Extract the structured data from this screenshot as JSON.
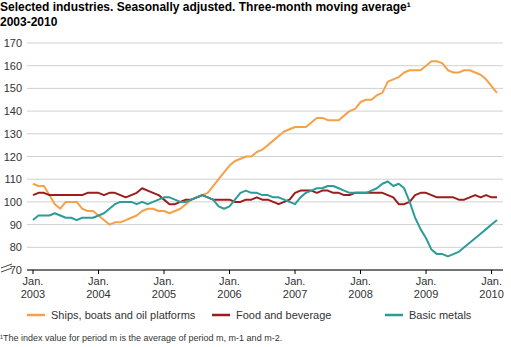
{
  "chart_data": {
    "type": "line",
    "title": "Selected industries. Seasonally adjusted. Three-month moving average¹",
    "subtitle": "2003-2010",
    "annotations": [
      "¹The index value for period m is the average of period m, m-1 and m-2."
    ],
    "categories": [
      "Jan. 2003",
      null,
      null,
      null,
      null,
      null,
      null,
      null,
      null,
      null,
      null,
      null,
      "Jan. 2004",
      null,
      null,
      null,
      null,
      null,
      null,
      null,
      null,
      null,
      null,
      null,
      "Jan. 2005",
      null,
      null,
      null,
      null,
      null,
      null,
      null,
      null,
      null,
      null,
      null,
      "Jan. 2006",
      null,
      null,
      null,
      null,
      null,
      null,
      null,
      null,
      null,
      null,
      null,
      "Jan. 2007",
      null,
      null,
      null,
      null,
      null,
      null,
      null,
      null,
      null,
      null,
      null,
      "Jan. 2008",
      null,
      null,
      null,
      null,
      null,
      null,
      null,
      null,
      null,
      null,
      null,
      "Jan. 2009",
      null,
      null,
      null,
      null,
      null,
      null,
      null,
      null,
      null,
      null,
      null,
      "Jan. 2010",
      null
    ],
    "series": [
      {
        "name": "Ships, boats and oil platforms",
        "color": "#f4a14a",
        "values": [
          108,
          107,
          107,
          103,
          99,
          97,
          100,
          100,
          100,
          97,
          96,
          96,
          94,
          92,
          90,
          91,
          91,
          92,
          93,
          94,
          96,
          97,
          97,
          96,
          96,
          95,
          96,
          97,
          99,
          101,
          102,
          103,
          104,
          107,
          110,
          113,
          116,
          118,
          119,
          120,
          120,
          122,
          123,
          125,
          127,
          129,
          131,
          132,
          133,
          133,
          133,
          135,
          137,
          137,
          136,
          136,
          136,
          138,
          140,
          141,
          144,
          145,
          145,
          147,
          148,
          153,
          154,
          155,
          157,
          158,
          158,
          158,
          160,
          162,
          162,
          161,
          158,
          157,
          157,
          158,
          158,
          157,
          156,
          154,
          151,
          148
        ]
      },
      {
        "name": "Food and beverage",
        "color": "#9c1c1c",
        "values": [
          103,
          104,
          104,
          103,
          103,
          103,
          103,
          103,
          103,
          103,
          104,
          104,
          104,
          103,
          104,
          104,
          103,
          102,
          103,
          104,
          106,
          105,
          104,
          103,
          101,
          99,
          99,
          100,
          101,
          101,
          102,
          103,
          102,
          101,
          101,
          101,
          101,
          100,
          100,
          101,
          101,
          102,
          101,
          101,
          100,
          99,
          100,
          101,
          104,
          105,
          105,
          105,
          104,
          105,
          105,
          104,
          104,
          103,
          103,
          104,
          104,
          104,
          104,
          104,
          104,
          103,
          102,
          99,
          99,
          100,
          103,
          104,
          104,
          103,
          102,
          102,
          102,
          102,
          101,
          101,
          102,
          103,
          102,
          103,
          102,
          102
        ]
      },
      {
        "name": "Basic metals",
        "color": "#2c9c98",
        "values": [
          92,
          94,
          94,
          94,
          95,
          94,
          93,
          93,
          92,
          93,
          93,
          93,
          94,
          95,
          97,
          99,
          100,
          100,
          100,
          99,
          100,
          99,
          100,
          101,
          102,
          102,
          101,
          100,
          100,
          101,
          102,
          103,
          102,
          101,
          98,
          97,
          98,
          101,
          104,
          105,
          104,
          104,
          103,
          103,
          102,
          102,
          101,
          100,
          99,
          102,
          104,
          105,
          106,
          106,
          107,
          107,
          106,
          105,
          104,
          104,
          104,
          104,
          105,
          106,
          108,
          109,
          107,
          108,
          106,
          100,
          93,
          88,
          84,
          79,
          77,
          77,
          76,
          77,
          78,
          80,
          82,
          84,
          86,
          88,
          90,
          92
        ]
      }
    ],
    "ylim": [
      70,
      170
    ],
    "yticks": [
      70,
      80,
      90,
      100,
      110,
      120,
      130,
      140,
      150,
      160,
      170
    ],
    "grid": true,
    "legend": "bottom"
  }
}
